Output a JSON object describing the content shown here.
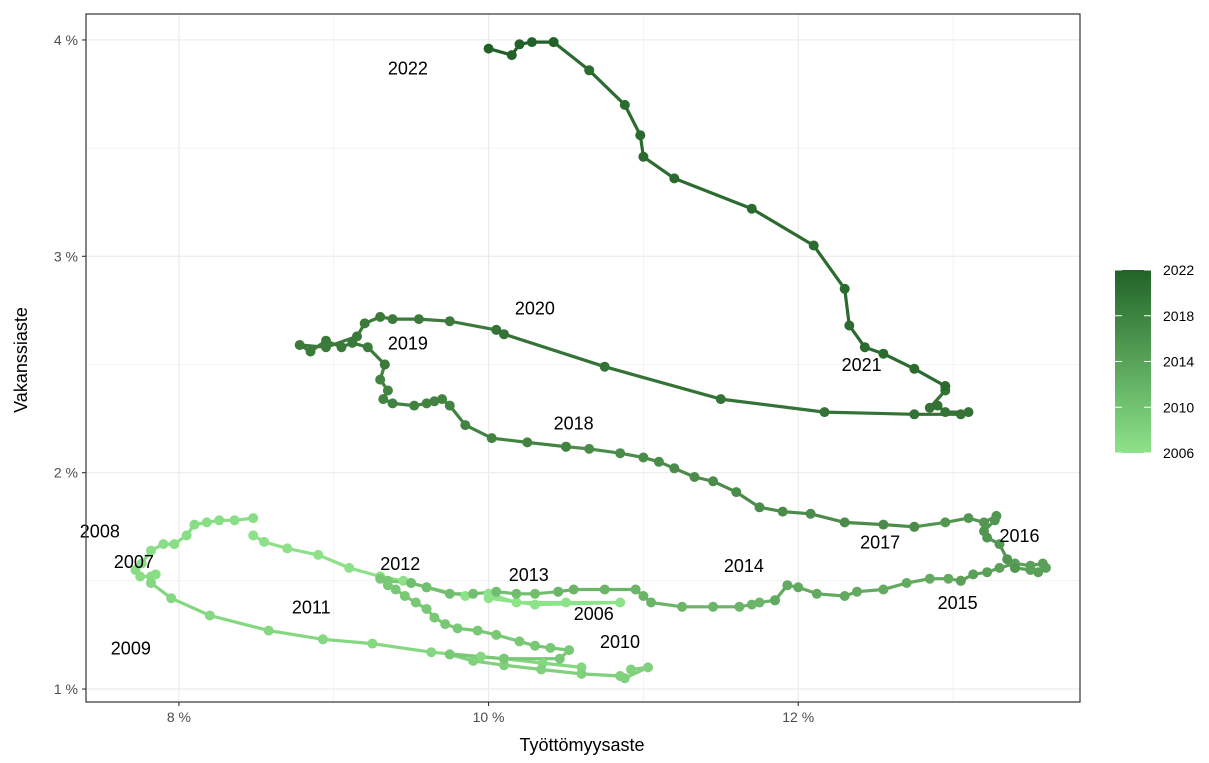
{
  "chart_data": {
    "type": "line",
    "xlabel": "Työttömyysaste",
    "ylabel": "Vakanssiaste",
    "xlim": [
      7.4,
      13.82
    ],
    "ylim": [
      0.94,
      4.12
    ],
    "x_ticks": [
      {
        "value": 8,
        "label": "8 %"
      },
      {
        "value": 10,
        "label": "10 %"
      },
      {
        "value": 12,
        "label": "12 %"
      }
    ],
    "y_ticks": [
      {
        "value": 1,
        "label": "1 %"
      },
      {
        "value": 2,
        "label": "2 %"
      },
      {
        "value": 3,
        "label": "3 %"
      },
      {
        "value": 4,
        "label": "4 %"
      }
    ],
    "grid": true,
    "x_unit": "%",
    "y_unit": "%",
    "series": [
      {
        "year_start": 2006,
        "color": "#8de38a",
        "points": [
          [
            10.0,
            1.44
          ],
          [
            10.18,
            1.4
          ],
          [
            10.5,
            1.4
          ],
          [
            10.85,
            1.4
          ],
          [
            10.3,
            1.39
          ],
          [
            10.0,
            1.42
          ]
        ]
      },
      {
        "year_start": 2007,
        "color": "#8ce189",
        "points": [
          [
            9.85,
            1.43
          ],
          [
            9.6,
            1.47
          ],
          [
            9.45,
            1.5
          ],
          [
            9.3,
            1.52
          ],
          [
            9.1,
            1.56
          ],
          [
            8.9,
            1.62
          ],
          [
            8.7,
            1.65
          ],
          [
            8.55,
            1.68
          ],
          [
            8.48,
            1.71
          ]
        ]
      },
      {
        "year_start": 2008,
        "color": "#89dd86",
        "points": [
          [
            8.48,
            1.79
          ],
          [
            8.36,
            1.78
          ],
          [
            8.26,
            1.78
          ],
          [
            8.18,
            1.77
          ],
          [
            8.1,
            1.76
          ],
          [
            8.05,
            1.71
          ],
          [
            7.97,
            1.67
          ],
          [
            7.9,
            1.67
          ],
          [
            7.82,
            1.64
          ],
          [
            7.76,
            1.58
          ],
          [
            7.72,
            1.55
          ],
          [
            7.75,
            1.52
          ],
          [
            7.82,
            1.52
          ],
          [
            7.85,
            1.53
          ],
          [
            7.82,
            1.49
          ]
        ]
      },
      {
        "year_start": 2009,
        "color": "#85d782",
        "points": [
          [
            7.82,
            1.49
          ],
          [
            7.95,
            1.42
          ],
          [
            8.2,
            1.34
          ],
          [
            8.58,
            1.27
          ],
          [
            8.93,
            1.23
          ],
          [
            9.25,
            1.21
          ],
          [
            9.63,
            1.17
          ],
          [
            9.95,
            1.15
          ],
          [
            10.1,
            1.14
          ],
          [
            10.35,
            1.12
          ],
          [
            10.6,
            1.1
          ]
        ]
      },
      {
        "year_start": 2010,
        "color": "#80d07d",
        "points": [
          [
            10.92,
            1.09
          ],
          [
            11.03,
            1.1
          ],
          [
            10.88,
            1.05
          ],
          [
            10.85,
            1.06
          ],
          [
            10.6,
            1.07
          ],
          [
            10.34,
            1.09
          ],
          [
            10.1,
            1.11
          ],
          [
            9.9,
            1.13
          ],
          [
            9.75,
            1.16
          ]
        ]
      },
      {
        "year_start": 2011,
        "color": "#79c876",
        "points": [
          [
            9.75,
            1.16
          ],
          [
            10.1,
            1.14
          ],
          [
            10.46,
            1.14
          ],
          [
            10.52,
            1.18
          ],
          [
            10.4,
            1.19
          ],
          [
            10.3,
            1.2
          ],
          [
            10.2,
            1.22
          ],
          [
            10.05,
            1.25
          ],
          [
            9.93,
            1.27
          ],
          [
            9.8,
            1.28
          ],
          [
            9.72,
            1.3
          ],
          [
            9.65,
            1.33
          ],
          [
            9.6,
            1.37
          ],
          [
            9.53,
            1.4
          ],
          [
            9.46,
            1.43
          ],
          [
            9.4,
            1.46
          ],
          [
            9.35,
            1.48
          ],
          [
            9.3,
            1.51
          ],
          [
            9.35,
            1.5
          ],
          [
            9.5,
            1.49
          ]
        ]
      },
      {
        "year_start": 2012,
        "color": "#72be6f",
        "points": [
          [
            9.5,
            1.49
          ],
          [
            9.6,
            1.47
          ],
          [
            9.75,
            1.44
          ],
          [
            9.9,
            1.44
          ],
          [
            10.05,
            1.45
          ],
          [
            10.18,
            1.44
          ],
          [
            10.3,
            1.44
          ],
          [
            10.45,
            1.45
          ]
        ]
      },
      {
        "year_start": 2013,
        "color": "#6bb468",
        "points": [
          [
            10.45,
            1.45
          ],
          [
            10.55,
            1.46
          ],
          [
            10.75,
            1.46
          ],
          [
            10.95,
            1.46
          ],
          [
            11.0,
            1.43
          ],
          [
            11.05,
            1.4
          ],
          [
            11.25,
            1.38
          ],
          [
            11.45,
            1.38
          ],
          [
            11.62,
            1.38
          ],
          [
            11.7,
            1.39
          ],
          [
            11.75,
            1.4
          ],
          [
            11.85,
            1.41
          ]
        ]
      },
      {
        "year_start": 2014,
        "color": "#63aa61",
        "points": [
          [
            11.85,
            1.41
          ],
          [
            11.93,
            1.48
          ],
          [
            12.0,
            1.47
          ],
          [
            12.12,
            1.44
          ],
          [
            12.3,
            1.43
          ],
          [
            12.38,
            1.45
          ],
          [
            12.55,
            1.46
          ],
          [
            12.7,
            1.49
          ],
          [
            12.85,
            1.51
          ],
          [
            12.97,
            1.51
          ],
          [
            13.05,
            1.5
          ]
        ]
      },
      {
        "year_start": 2015,
        "color": "#5ba059",
        "points": [
          [
            13.05,
            1.5
          ],
          [
            13.13,
            1.53
          ],
          [
            13.22,
            1.54
          ],
          [
            13.3,
            1.56
          ],
          [
            13.4,
            1.58
          ],
          [
            13.5,
            1.57
          ],
          [
            13.58,
            1.58
          ],
          [
            13.6,
            1.56
          ],
          [
            13.55,
            1.54
          ],
          [
            13.5,
            1.55
          ],
          [
            13.4,
            1.56
          ]
        ]
      },
      {
        "year_start": 2016,
        "color": "#539652",
        "points": [
          [
            13.4,
            1.56
          ],
          [
            13.35,
            1.6
          ],
          [
            13.3,
            1.67
          ],
          [
            13.22,
            1.7
          ],
          [
            13.2,
            1.73
          ],
          [
            13.27,
            1.78
          ],
          [
            13.28,
            1.8
          ],
          [
            13.2,
            1.77
          ],
          [
            13.1,
            1.79
          ],
          [
            12.95,
            1.77
          ],
          [
            12.75,
            1.75
          ]
        ]
      },
      {
        "year_start": 2017,
        "color": "#4b8c4a",
        "points": [
          [
            12.75,
            1.75
          ],
          [
            12.55,
            1.76
          ],
          [
            12.3,
            1.77
          ],
          [
            12.08,
            1.81
          ],
          [
            11.9,
            1.82
          ],
          [
            11.75,
            1.84
          ],
          [
            11.6,
            1.91
          ],
          [
            11.45,
            1.96
          ],
          [
            11.33,
            1.98
          ],
          [
            11.2,
            2.02
          ],
          [
            11.1,
            2.05
          ],
          [
            11.0,
            2.07
          ],
          [
            10.85,
            2.09
          ],
          [
            10.65,
            2.11
          ],
          [
            10.5,
            2.12
          ]
        ]
      },
      {
        "year_start": 2018,
        "color": "#438342",
        "points": [
          [
            10.5,
            2.12
          ],
          [
            10.25,
            2.14
          ],
          [
            10.02,
            2.16
          ],
          [
            9.85,
            2.22
          ],
          [
            9.75,
            2.31
          ],
          [
            9.7,
            2.34
          ],
          [
            9.65,
            2.33
          ],
          [
            9.6,
            2.32
          ],
          [
            9.52,
            2.31
          ],
          [
            9.38,
            2.32
          ],
          [
            9.32,
            2.34
          ],
          [
            9.35,
            2.38
          ],
          [
            9.3,
            2.43
          ],
          [
            9.33,
            2.5
          ]
        ]
      },
      {
        "year_start": 2019,
        "color": "#3b7a3b",
        "points": [
          [
            9.33,
            2.5
          ],
          [
            9.22,
            2.58
          ],
          [
            9.12,
            2.6
          ],
          [
            9.05,
            2.58
          ],
          [
            8.95,
            2.61
          ],
          [
            8.85,
            2.56
          ],
          [
            8.78,
            2.59
          ],
          [
            8.95,
            2.58
          ],
          [
            9.15,
            2.63
          ],
          [
            9.2,
            2.69
          ],
          [
            9.3,
            2.72
          ],
          [
            9.38,
            2.71
          ],
          [
            9.55,
            2.71
          ],
          [
            9.75,
            2.7
          ],
          [
            10.05,
            2.66
          ]
        ]
      },
      {
        "year_start": 2020,
        "color": "#347235",
        "points": [
          [
            10.05,
            2.66
          ],
          [
            10.1,
            2.64
          ],
          [
            10.75,
            2.49
          ],
          [
            11.5,
            2.34
          ],
          [
            12.17,
            2.28
          ],
          [
            12.75,
            2.27
          ],
          [
            13.05,
            2.27
          ],
          [
            13.1,
            2.28
          ],
          [
            12.95,
            2.28
          ],
          [
            12.9,
            2.31
          ],
          [
            12.85,
            2.3
          ],
          [
            12.95,
            2.38
          ],
          [
            12.95,
            2.4
          ]
        ]
      },
      {
        "year_start": 2021,
        "color": "#2c6b2f",
        "points": [
          [
            12.95,
            2.4
          ],
          [
            12.75,
            2.48
          ],
          [
            12.55,
            2.55
          ],
          [
            12.43,
            2.58
          ],
          [
            12.33,
            2.68
          ],
          [
            12.3,
            2.85
          ],
          [
            12.1,
            3.05
          ],
          [
            11.7,
            3.22
          ],
          [
            11.2,
            3.36
          ],
          [
            11.0,
            3.46
          ],
          [
            10.98,
            3.56
          ],
          [
            10.88,
            3.7
          ],
          [
            10.65,
            3.86
          ],
          [
            10.42,
            3.99
          ]
        ]
      },
      {
        "year_start": 2022,
        "color": "#226228",
        "points": [
          [
            10.42,
            3.99
          ],
          [
            10.28,
            3.99
          ],
          [
            10.2,
            3.98
          ],
          [
            10.15,
            3.93
          ],
          [
            10.0,
            3.96
          ]
        ]
      }
    ],
    "annotations": [
      {
        "text": "2006",
        "x": 10.55,
        "y": 1.32
      },
      {
        "text": "2007",
        "x": 7.58,
        "y": 1.56
      },
      {
        "text": "2008",
        "x": 7.36,
        "y": 1.7
      },
      {
        "text": "2009",
        "x": 7.56,
        "y": 1.16
      },
      {
        "text": "2010",
        "x": 10.72,
        "y": 1.19
      },
      {
        "text": "2011",
        "x": 8.73,
        "y": 1.35
      },
      {
        "text": "2012",
        "x": 9.3,
        "y": 1.55
      },
      {
        "text": "2013",
        "x": 10.13,
        "y": 1.5
      },
      {
        "text": "2014",
        "x": 11.52,
        "y": 1.54
      },
      {
        "text": "2015",
        "x": 12.9,
        "y": 1.37
      },
      {
        "text": "2016",
        "x": 13.3,
        "y": 1.68
      },
      {
        "text": "2017",
        "x": 12.4,
        "y": 1.65
      },
      {
        "text": "2018",
        "x": 10.42,
        "y": 2.2
      },
      {
        "text": "2019",
        "x": 9.35,
        "y": 2.57
      },
      {
        "text": "2020",
        "x": 10.17,
        "y": 2.73
      },
      {
        "text": "2021",
        "x": 12.28,
        "y": 2.47
      },
      {
        "text": "2022",
        "x": 9.35,
        "y": 3.84
      }
    ],
    "legend": {
      "type": "colorbar",
      "placement": "right",
      "min": 2006,
      "max": 2022,
      "color_low": "#8de38a",
      "color_high": "#216327",
      "ticks": [
        "2006",
        "2010",
        "2014",
        "2018",
        "2022"
      ]
    }
  }
}
